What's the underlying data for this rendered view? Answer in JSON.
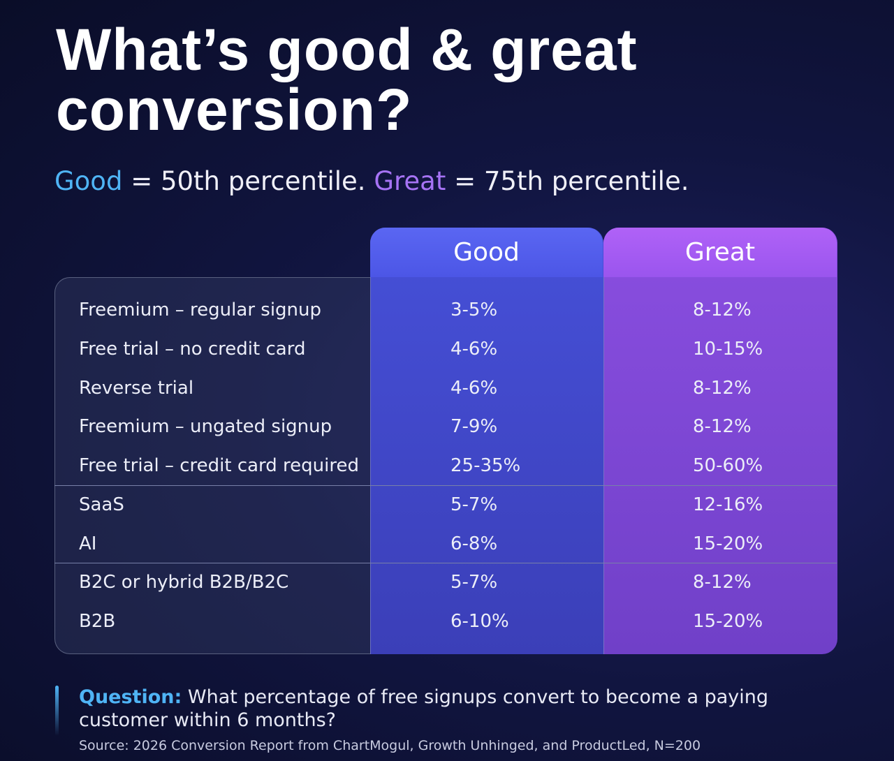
{
  "title_lines": [
    "What’s good & great",
    "conversion?"
  ],
  "legend": {
    "good_label": "Good",
    "good_text": "= 50th percentile.",
    "great_label": "Great",
    "great_text": "= 75th percentile."
  },
  "table": {
    "headers": [
      "Good",
      "Great"
    ],
    "groups": [
      [
        [
          "Freemium – regular signup",
          "3-5%",
          "8-12%"
        ],
        [
          "Free trial – no credit card",
          "4-6%",
          "10-15%"
        ],
        [
          "Reverse trial",
          "4-6%",
          "8-12%"
        ],
        [
          "Freemium – ungated signup",
          "7-9%",
          "8-12%"
        ],
        [
          "Free trial – credit card required",
          "25-35%",
          "50-60%"
        ]
      ],
      [
        [
          "SaaS",
          "5-7%",
          "12-16%"
        ],
        [
          "AI",
          "6-8%",
          "15-20%"
        ]
      ],
      [
        [
          "B2C or hybrid B2B/B2C",
          "5-7%",
          "8-12%"
        ],
        [
          "B2B",
          "6-10%",
          "15-20%"
        ]
      ]
    ]
  },
  "question": {
    "label": "Question:",
    "text": "What percentage of free signups convert to become a paying customer within 6 months?"
  },
  "source": "Source: 2026 Conversion Report from ChartMogul, Growth Unhinged, and ProductLed, N=200"
}
